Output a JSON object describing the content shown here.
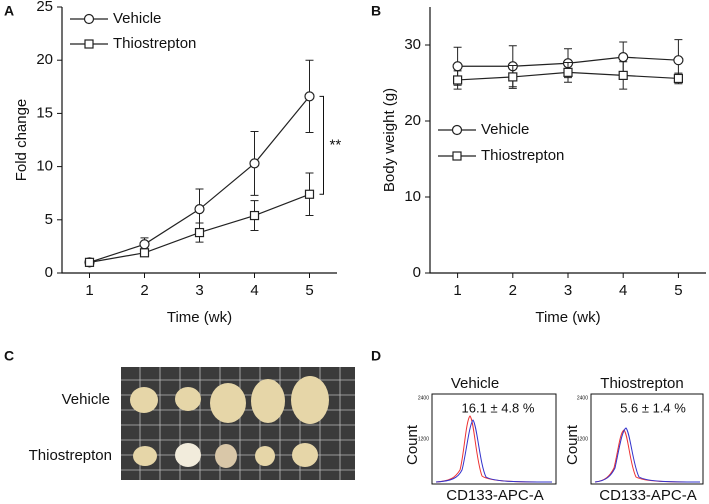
{
  "panel_labels": [
    "A",
    "B",
    "C",
    "D"
  ],
  "chart_data": [
    {
      "type": "line",
      "xlabel": "Time (wk)",
      "ylabel": "Fold change",
      "x": [
        1,
        2,
        3,
        4,
        5
      ],
      "xlim": [
        0.5,
        5.5
      ],
      "xticks": [
        1,
        2,
        3,
        4,
        5
      ],
      "ylim": [
        0,
        25
      ],
      "yticks": [
        0,
        5,
        10,
        15,
        20,
        25
      ],
      "legend": "upper left",
      "series": [
        {
          "name": "Vehicle",
          "color": "#222222",
          "marker": "circle",
          "values": [
            1,
            2.7,
            6.0,
            10.3,
            16.6
          ],
          "errors": [
            0.1,
            0.6,
            1.9,
            3.0,
            3.4
          ]
        },
        {
          "name": "Thiostrepton",
          "color": "#222222",
          "marker": "square",
          "values": [
            1,
            1.9,
            3.8,
            5.4,
            7.4
          ],
          "errors": [
            0.1,
            0.2,
            0.9,
            1.4,
            2.0
          ]
        }
      ],
      "annotations": [
        {
          "text": "**"
        }
      ]
    },
    {
      "type": "line",
      "xlabel": "Time (wk)",
      "ylabel": "Body weight (g)",
      "x": [
        1,
        2,
        3,
        4,
        5
      ],
      "xlim": [
        0.5,
        5.5
      ],
      "xticks": [
        1,
        2,
        3,
        4,
        5
      ],
      "ylim": [
        0,
        35
      ],
      "yticks": [
        0,
        10,
        20,
        30
      ],
      "legend": "center left",
      "series": [
        {
          "name": "Vehicle",
          "color": "#222222",
          "marker": "circle",
          "values": [
            27.2,
            27.2,
            27.6,
            28.4,
            28.0
          ],
          "errors": [
            2.5,
            2.7,
            1.9,
            2.0,
            2.7
          ]
        },
        {
          "name": "Thiostrepton",
          "color": "#222222",
          "marker": "square",
          "values": [
            25.4,
            25.8,
            26.4,
            26.0,
            25.6
          ],
          "errors": [
            1.2,
            1.5,
            1.3,
            1.8,
            0.7
          ]
        }
      ]
    }
  ],
  "photo": {
    "rows": [
      "Vehicle",
      "Thiostrepton"
    ]
  },
  "flow": {
    "ylabel": "Count",
    "xlabel": "CD133-APC-A",
    "yticks": [
      "2400",
      "1200"
    ],
    "panels": [
      {
        "title": "Vehicle",
        "annotation": "16.1 ± 4.8 %"
      },
      {
        "title": "Thiostrepton",
        "annotation": "5.6 ± 1.4 %"
      }
    ]
  }
}
